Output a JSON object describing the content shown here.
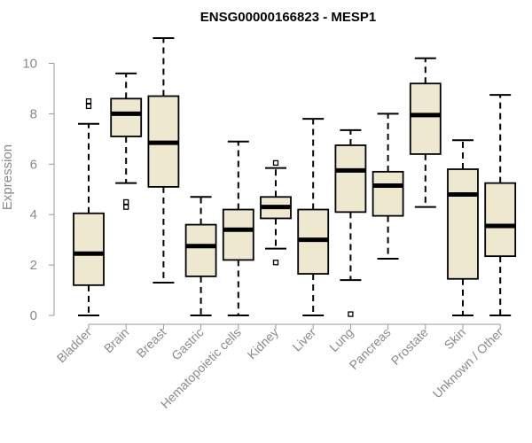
{
  "chart_data": {
    "type": "boxplot",
    "title": "ENSG00000166823 - MESP1",
    "xlabel": "",
    "ylabel": "Expression",
    "ylim": [
      0,
      11
    ],
    "yticks": [
      0,
      2,
      4,
      6,
      8,
      10
    ],
    "box_color": "#efe8d0",
    "categories": [
      "Bladder",
      "Brain",
      "Breast",
      "Gastric",
      "Hematopoietic cells",
      "Kidney",
      "Liver",
      "Lung",
      "Pancreas",
      "Prostate",
      "Skin",
      "Unknown / Other"
    ],
    "boxes": [
      {
        "category": "Bladder",
        "whisker_low": 0.0,
        "q1": 1.2,
        "median": 2.45,
        "q3": 4.05,
        "whisker_high": 7.6,
        "outliers": [
          8.3,
          8.5
        ]
      },
      {
        "category": "Brain",
        "whisker_low": 5.25,
        "q1": 7.1,
        "median": 8.0,
        "q3": 8.6,
        "whisker_high": 9.6,
        "outliers": [
          4.3,
          4.5
        ]
      },
      {
        "category": "Breast",
        "whisker_low": 1.3,
        "q1": 5.1,
        "median": 6.85,
        "q3": 8.7,
        "whisker_high": 11.0,
        "outliers": []
      },
      {
        "category": "Gastric",
        "whisker_low": 0.0,
        "q1": 1.55,
        "median": 2.75,
        "q3": 3.6,
        "whisker_high": 4.7,
        "outliers": []
      },
      {
        "category": "Hematopoietic cells",
        "whisker_low": 0.0,
        "q1": 2.2,
        "median": 3.4,
        "q3": 4.2,
        "whisker_high": 6.9,
        "outliers": []
      },
      {
        "category": "Kidney",
        "whisker_low": 2.65,
        "q1": 3.85,
        "median": 4.3,
        "q3": 4.7,
        "whisker_high": 5.85,
        "outliers": [
          2.1,
          6.05
        ]
      },
      {
        "category": "Liver",
        "whisker_low": 0.0,
        "q1": 1.65,
        "median": 3.0,
        "q3": 4.2,
        "whisker_high": 7.8,
        "outliers": []
      },
      {
        "category": "Lung",
        "whisker_low": 1.4,
        "q1": 4.1,
        "median": 5.75,
        "q3": 6.75,
        "whisker_high": 7.35,
        "outliers": [
          0.05
        ]
      },
      {
        "category": "Pancreas",
        "whisker_low": 2.25,
        "q1": 3.95,
        "median": 5.15,
        "q3": 5.7,
        "whisker_high": 8.0,
        "outliers": []
      },
      {
        "category": "Prostate",
        "whisker_low": 4.3,
        "q1": 6.4,
        "median": 7.95,
        "q3": 9.2,
        "whisker_high": 10.2,
        "outliers": []
      },
      {
        "category": "Skin",
        "whisker_low": 0.0,
        "q1": 1.45,
        "median": 4.8,
        "q3": 5.8,
        "whisker_high": 6.95,
        "outliers": []
      },
      {
        "category": "Unknown / Other",
        "whisker_low": 0.0,
        "q1": 2.35,
        "median": 3.55,
        "q3": 5.25,
        "whisker_high": 8.75,
        "outliers": []
      }
    ]
  }
}
